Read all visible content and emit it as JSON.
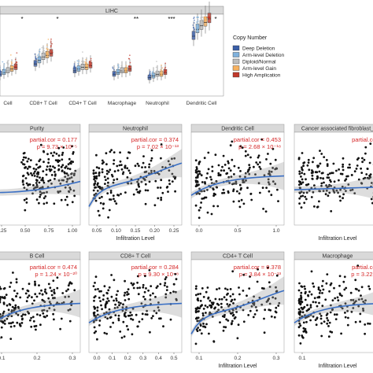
{
  "colors": {
    "deep_deletion": "#3b5fa8",
    "arm_deletion": "#7fb1dc",
    "diploid": "#bdbdbd",
    "arm_gain": "#f7b15f",
    "high_amp": "#c0392b",
    "smooth": "#3a6fc4",
    "points": "#111111",
    "stat_text": "#d62728"
  },
  "top_panel": {
    "title": "LIHC",
    "categories": [
      "B Cell",
      "CD8+ T Cell",
      "CD4+ T Cell",
      "Macrophage",
      "Neutrophil",
      "Dendritic Cell"
    ],
    "category_labels": [
      "Cell",
      "CD8+ T Cell",
      "CD4+ T Cell",
      "Macrophage",
      "Neutrophil",
      "Dendritic Cell"
    ],
    "significance": [
      "*",
      "*",
      "",
      "**",
      "***",
      "*"
    ],
    "legend": {
      "title": "Copy Number",
      "items": [
        "Deep Deletion",
        "Arm-level Deletion",
        "Diploid/Normal",
        "Arm-level Gain",
        "High Amplication"
      ]
    }
  },
  "chart_data": [
    {
      "type": "box",
      "title": "LIHC",
      "categories": [
        "B Cell",
        "CD8+ T Cell",
        "CD4+ T Cell",
        "Macrophage",
        "Neutrophil",
        "Dendritic Cell"
      ],
      "series": [
        {
          "name": "Deep Deletion",
          "medians": [
            0.08,
            0.14,
            0.1,
            0.08,
            0.06,
            0.3
          ]
        },
        {
          "name": "Arm-level Deletion",
          "medians": [
            0.09,
            0.16,
            0.11,
            0.09,
            0.07,
            0.34
          ]
        },
        {
          "name": "Diploid/Normal",
          "medians": [
            0.1,
            0.18,
            0.12,
            0.1,
            0.08,
            0.36
          ]
        },
        {
          "name": "Arm-level Gain",
          "medians": [
            0.11,
            0.19,
            0.12,
            0.1,
            0.08,
            0.38
          ]
        },
        {
          "name": "High Amplication",
          "medians": [
            0.12,
            0.2,
            0.13,
            0.11,
            0.09,
            0.4
          ]
        }
      ]
    },
    {
      "type": "scatter",
      "title": "Purity",
      "stat1": "partial.cor = 0.177",
      "stat2": "p = 9.73 × 10⁻⁵",
      "xticks": [
        "0.25",
        "0.50",
        "0.75",
        "1.00"
      ],
      "xlim": [
        0.15,
        1.0
      ],
      "trend": "flat-rise"
    },
    {
      "type": "scatter",
      "title": "Neutrophil",
      "stat1": "partial.cor = 0.374",
      "stat2": "p = 7.02 × 10⁻¹³",
      "xticks": [
        "0.05",
        "0.10",
        "0.15",
        "0.20",
        "0.25"
      ],
      "xlim": [
        0.0,
        0.27
      ],
      "xlabel": "Infiltration Level",
      "trend": "dip-rise"
    },
    {
      "type": "scatter",
      "title": "Dendritic Cell",
      "stat1": "partial.cor = 0.453",
      "stat2": "p = 2.68 × 10⁻¹⁸",
      "xticks": [
        "0.0",
        "0.5",
        "1.0"
      ],
      "xlim": [
        -0.1,
        1.2
      ],
      "trend": "rise"
    },
    {
      "type": "scatter",
      "title": "Cancer associated fibroblast_",
      "stat1": "partial.cor",
      "stat2": "p",
      "xlabel": "Infiltration Level",
      "trend": "flat"
    },
    {
      "type": "scatter",
      "title": "B Cell",
      "stat1": "partial.cor = 0.474",
      "stat2": "p = 1.24 × 10⁻²⁰",
      "xticks": [
        "0.1",
        "0.2",
        "0.3"
      ],
      "trend": "rise"
    },
    {
      "type": "scatter",
      "title": "CD8+ T Cell",
      "stat1": "partial.cor = 0.284",
      "stat2": "p = 9.30 × 10⁻⁸",
      "xticks": [
        "0.0",
        "0.1",
        "0.2",
        "0.3",
        "0.4",
        "0.5"
      ],
      "trend": "rise"
    },
    {
      "type": "scatter",
      "title": "CD4+ T Cell",
      "stat1": "partial.cor = 0.378",
      "stat2": "p = 3.84 × 10⁻¹³",
      "xticks": [
        "0.1",
        "0.2",
        "0.3"
      ],
      "xlabel": "Infiltration Level",
      "trend": "dip-rise"
    },
    {
      "type": "scatter",
      "title": "Macrophage",
      "stat1": "partial.cor",
      "stat2": "p = 3.22 ×",
      "xticks": [
        "0.1"
      ],
      "xlabel": "Infiltration Level",
      "trend": "rise"
    }
  ]
}
